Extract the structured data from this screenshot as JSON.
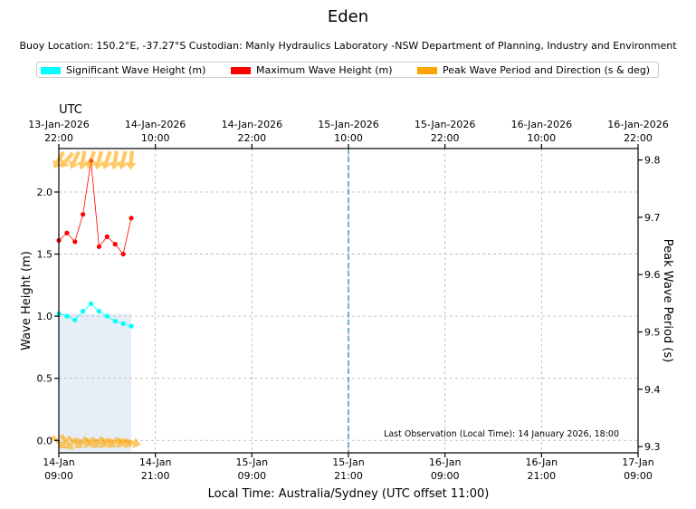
{
  "chart_data": {
    "type": "line",
    "title": "Eden",
    "subtitle": "Buoy Location: 150.2°E, -37.27°S     Custodian: Manly Hydraulics Laboratory -NSW Department of Planning, Industry and Environment",
    "legend": [
      {
        "label": "Significant Wave Height (m)",
        "color": "#00ffff"
      },
      {
        "label": "Maximum Wave Height (m)",
        "color": "#ff0000"
      },
      {
        "label": "Peak Wave Period and Direction (s & deg)",
        "color": "#ffa500"
      }
    ],
    "xlabel": "Local Time: Australia/Sydney (UTC offset 11:00)",
    "ylabel": "Wave Height (m)",
    "y2label": "Peak Wave Period (s)",
    "top_axis_label": "UTC",
    "x_unit": "hours since 14-Jan 09:00 local",
    "xlim": [
      0,
      72
    ],
    "ylim": [
      -0.1,
      2.35
    ],
    "y2lim": [
      9.289,
      9.82
    ],
    "x_ticks": [
      {
        "x": 0,
        "line1": "14-Jan",
        "line2": "09:00"
      },
      {
        "x": 12,
        "line1": "14-Jan",
        "line2": "21:00"
      },
      {
        "x": 24,
        "line1": "15-Jan",
        "line2": "09:00"
      },
      {
        "x": 36,
        "line1": "15-Jan",
        "line2": "21:00"
      },
      {
        "x": 48,
        "line1": "16-Jan",
        "line2": "09:00"
      },
      {
        "x": 60,
        "line1": "16-Jan",
        "line2": "21:00"
      },
      {
        "x": 72,
        "line1": "17-Jan",
        "line2": "09:00"
      }
    ],
    "x_top_ticks": [
      {
        "x": 0,
        "line1": "13-Jan-2026",
        "line2": "22:00"
      },
      {
        "x": 12,
        "line1": "14-Jan-2026",
        "line2": "10:00"
      },
      {
        "x": 24,
        "line1": "14-Jan-2026",
        "line2": "22:00"
      },
      {
        "x": 36,
        "line1": "15-Jan-2026",
        "line2": "10:00"
      },
      {
        "x": 48,
        "line1": "15-Jan-2026",
        "line2": "22:00"
      },
      {
        "x": 60,
        "line1": "16-Jan-2026",
        "line2": "10:00"
      },
      {
        "x": 72,
        "line1": "16-Jan-2026",
        "line2": "22:00"
      }
    ],
    "y_ticks": [
      {
        "v": 0.0,
        "label": "0.0"
      },
      {
        "v": 0.5,
        "label": "0.5"
      },
      {
        "v": 1.0,
        "label": "1.0"
      },
      {
        "v": 1.5,
        "label": "1.5"
      },
      {
        "v": 2.0,
        "label": "2.0"
      }
    ],
    "y2_ticks": [
      {
        "v": 9.3,
        "label": "9.3"
      },
      {
        "v": 9.4,
        "label": "9.4"
      },
      {
        "v": 9.5,
        "label": "9.5"
      },
      {
        "v": 9.6,
        "label": "9.6"
      },
      {
        "v": 9.7,
        "label": "9.7"
      },
      {
        "v": 9.8,
        "label": "9.8"
      }
    ],
    "series": [
      {
        "name": "Significant Wave Height (m)",
        "color": "#00ffff",
        "x": [
          0,
          1,
          2,
          3,
          4,
          5,
          6,
          7,
          8,
          9
        ],
        "values": [
          1.02,
          1.0,
          0.97,
          1.04,
          1.1,
          1.04,
          1.0,
          0.96,
          0.94,
          0.92
        ]
      },
      {
        "name": "Maximum Wave Height (m)",
        "color": "#ff0000",
        "x": [
          0,
          1,
          2,
          3,
          4,
          5,
          6,
          7,
          8,
          9
        ],
        "values": [
          1.61,
          1.67,
          1.6,
          1.82,
          2.25,
          1.56,
          1.64,
          1.58,
          1.5,
          1.79
        ]
      }
    ],
    "peak_direction": {
      "name": "Peak Wave Period and Direction (s & deg)",
      "color": "#ffa500",
      "x": [
        0,
        1,
        2,
        3,
        4,
        5,
        6,
        7,
        8,
        9
      ],
      "period": [
        9.8,
        9.8,
        9.8,
        9.8,
        9.8,
        9.8,
        9.8,
        9.8,
        9.8,
        9.8
      ],
      "direction_deg": [
        120,
        130,
        115,
        100,
        110,
        105,
        110,
        100,
        105,
        95
      ]
    },
    "shaded_region": {
      "x_start": 0,
      "x_end": 9,
      "color": "#e6eff7"
    },
    "now_line": {
      "x": 36,
      "color": "#4a90c4"
    },
    "annotation": "Last Observation (Local Time): 14 January 2026, 18:00"
  }
}
